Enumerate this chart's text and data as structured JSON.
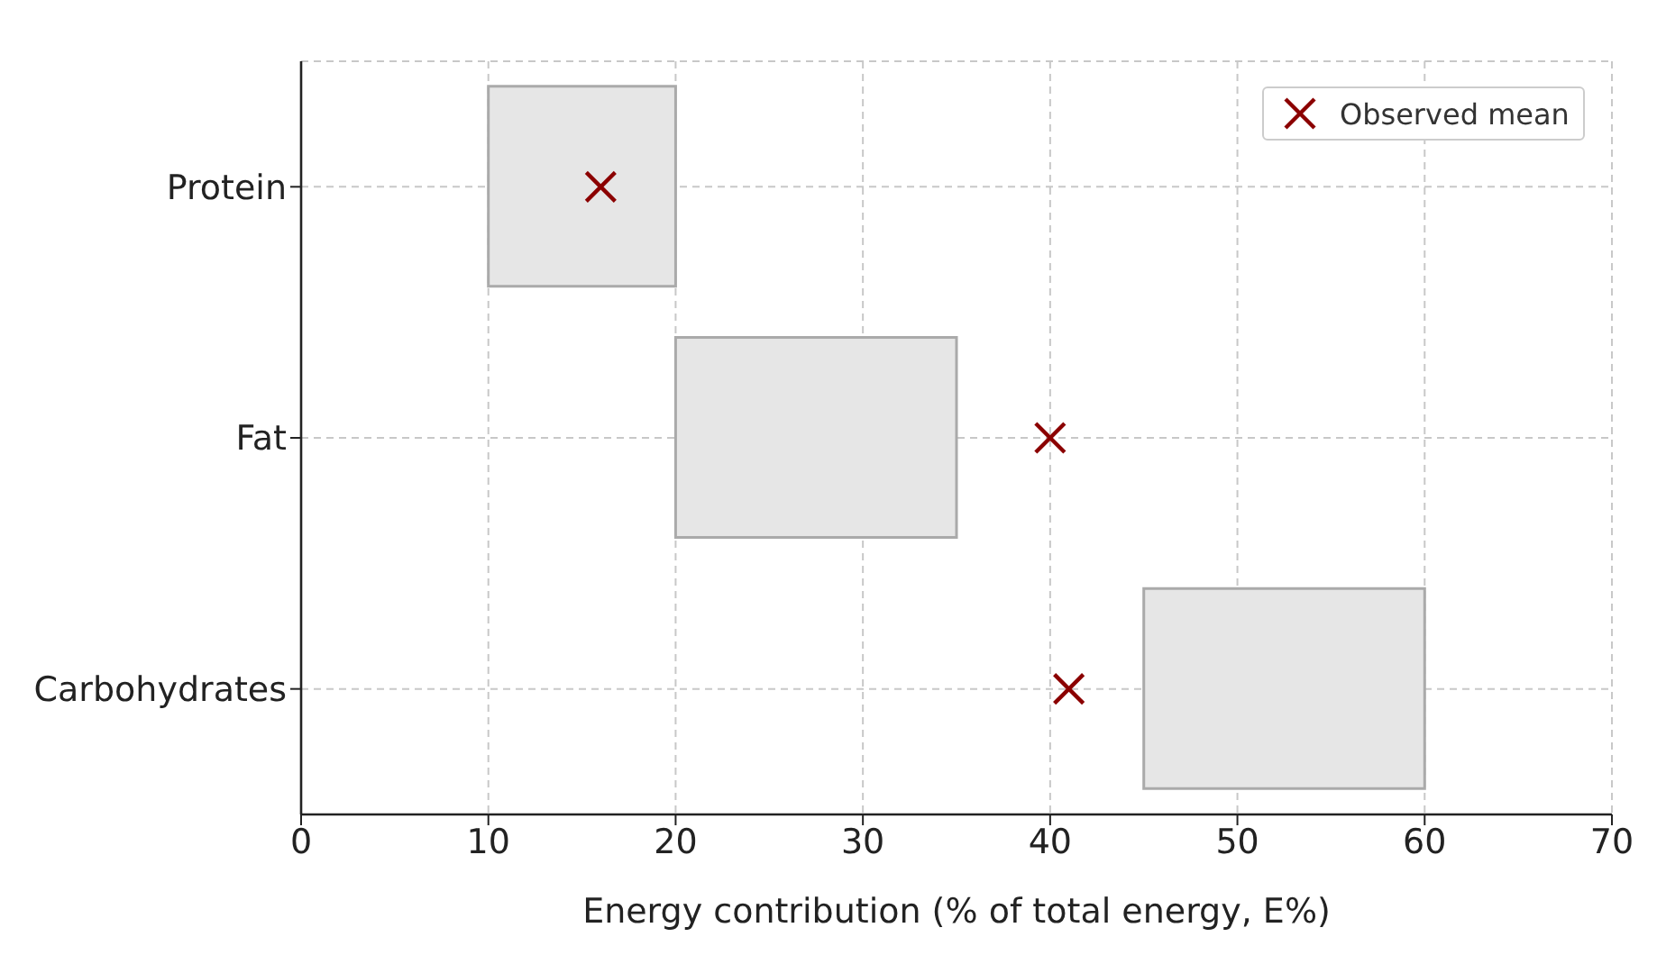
{
  "chart_data": {
    "type": "bar",
    "orientation": "horizontal",
    "xlabel": "Energy contribution (% of total energy, E%)",
    "categories": [
      "Protein",
      "Fat",
      "Carbohydrates"
    ],
    "series": [
      {
        "color": "#e6e6e6",
        "base": [
          10,
          20,
          45
        ],
        "values": [
          10,
          15,
          15
        ]
      },
      {
        "type": "scatter",
        "name": "Observed mean",
        "color": "#8b0000",
        "marker": "cross",
        "values": [
          16,
          40,
          41
        ]
      }
    ],
    "xlim": [
      0,
      70
    ],
    "xticks": [
      0,
      10,
      20,
      30,
      40,
      50,
      60,
      70
    ],
    "grid": true,
    "legend": "top right"
  }
}
